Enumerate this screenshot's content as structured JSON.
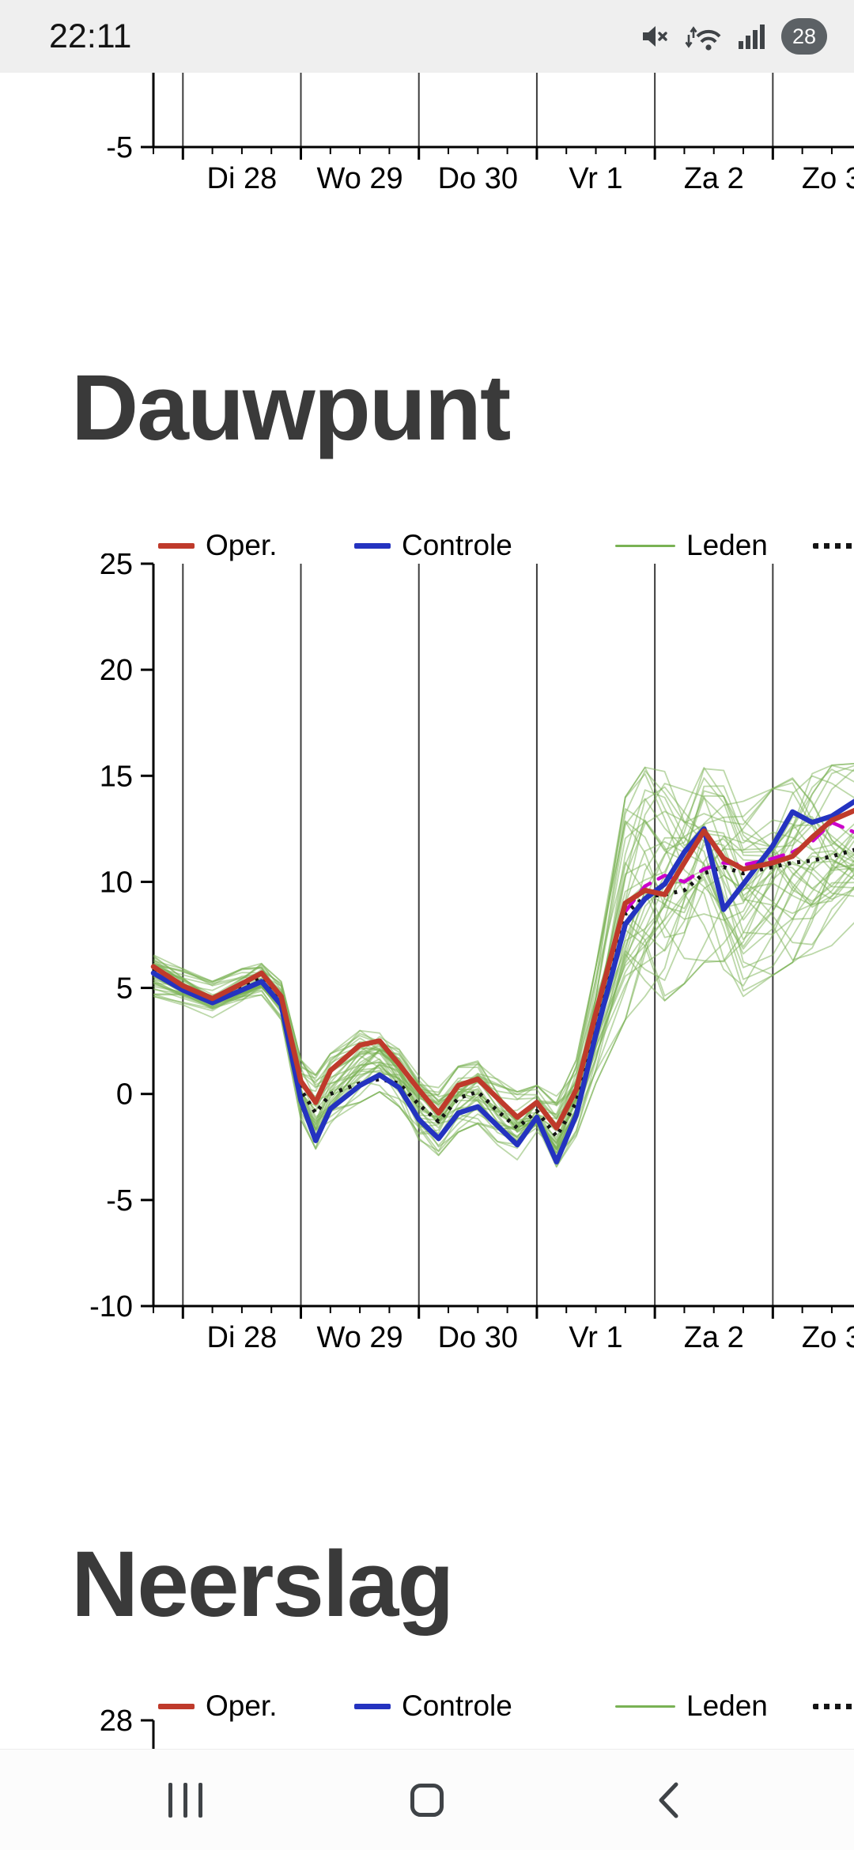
{
  "status_bar": {
    "time": "22:11",
    "battery_percent": "28",
    "icons": [
      {
        "name": "mute-icon"
      },
      {
        "name": "wifi-icon"
      },
      {
        "name": "signal-icon"
      },
      {
        "name": "battery-percent-badge"
      }
    ]
  },
  "nav_bar": {
    "buttons": [
      {
        "name": "recents-button",
        "icon": "recents-icon"
      },
      {
        "name": "home-button",
        "icon": "home-icon"
      },
      {
        "name": "back-button",
        "icon": "back-icon"
      }
    ]
  },
  "legend": {
    "items": [
      {
        "label": "Oper.",
        "color": "#bf3a2b",
        "swatch": "thick"
      },
      {
        "label": "Controle",
        "color": "#2433c0",
        "swatch": "thick"
      },
      {
        "label": "Leden",
        "color": "#79b254",
        "swatch": "thin"
      },
      {
        "label": "",
        "color": "#141414",
        "swatch": "dots"
      }
    ]
  },
  "chart_data": [
    {
      "type": "line",
      "partial": "bottom-axis-only",
      "y_tick_visible": -5,
      "grid_hours": [
        6,
        30,
        54,
        78,
        102,
        126,
        150
      ],
      "x_labels": [
        {
          "t": 18,
          "label": "Di 28"
        },
        {
          "t": 42,
          "label": "Wo 29"
        },
        {
          "t": 66,
          "label": "Do 30"
        },
        {
          "t": 90,
          "label": "Vr 1"
        },
        {
          "t": 114,
          "label": "Za 2"
        },
        {
          "t": 138,
          "label": "Zo 3"
        }
      ]
    },
    {
      "type": "line",
      "title": "Dauwpunt",
      "ylim": [
        -10,
        25
      ],
      "y_ticks": [
        25,
        20,
        15,
        10,
        5,
        0,
        -5,
        -10
      ],
      "grid_hours": [
        6,
        30,
        54,
        78,
        102,
        126,
        150
      ],
      "x_labels": [
        {
          "t": 18,
          "label": "Di 28"
        },
        {
          "t": 42,
          "label": "Wo 29"
        },
        {
          "t": 66,
          "label": "Do 30"
        },
        {
          "t": 90,
          "label": "Vr 1"
        },
        {
          "t": 114,
          "label": "Za 2"
        },
        {
          "t": 138,
          "label": "Zo 3"
        }
      ],
      "x": [
        0,
        6,
        12,
        18,
        22,
        26,
        30,
        33,
        36,
        42,
        46,
        50,
        54,
        58,
        62,
        66,
        70,
        74,
        78,
        82,
        86,
        90,
        96,
        100,
        104,
        108,
        112,
        116,
        120,
        126,
        130,
        134,
        138,
        144
      ],
      "series": [
        {
          "name": "",
          "style": "dashed",
          "color": "#cc00cc",
          "width": 4.5,
          "x": [
            96,
            100,
            104,
            108,
            112,
            116,
            120,
            126,
            130,
            134,
            138,
            144
          ],
          "values": [
            8.6,
            9.8,
            10.3,
            10.0,
            10.6,
            10.9,
            10.8,
            11.1,
            11.4,
            11.9,
            12.8,
            12.2
          ]
        },
        {
          "name": "",
          "style": "dotted",
          "color": "#141414",
          "width": 5,
          "values": [
            5.8,
            5.0,
            4.4,
            5.0,
            5.5,
            4.4,
            0.2,
            -0.9,
            0.0,
            0.5,
            0.7,
            0.5,
            -0.5,
            -1.3,
            -0.2,
            0.1,
            -0.8,
            -1.6,
            -0.8,
            -2.0,
            -0.4,
            3.2,
            8.5,
            9.3,
            9.4,
            9.6,
            10.4,
            10.7,
            10.4,
            10.7,
            10.9,
            11.0,
            11.2,
            11.6
          ]
        },
        {
          "name": "Controle",
          "style": "solid",
          "color": "#2433c0",
          "width": 6.5,
          "values": [
            5.7,
            4.9,
            4.3,
            4.9,
            5.3,
            4.2,
            -0.3,
            -2.2,
            -0.7,
            0.4,
            0.9,
            0.3,
            -1.2,
            -2.1,
            -0.9,
            -0.6,
            -1.5,
            -2.4,
            -1.1,
            -3.2,
            -1.0,
            2.8,
            8.0,
            9.2,
            9.9,
            11.4,
            12.5,
            8.7,
            9.9,
            11.7,
            13.3,
            12.8,
            13.1,
            14.0
          ]
        },
        {
          "name": "Oper.",
          "style": "solid",
          "color": "#bf3a2b",
          "width": 6.5,
          "values": [
            6.0,
            5.1,
            4.5,
            5.2,
            5.7,
            4.6,
            0.6,
            -0.4,
            1.1,
            2.3,
            2.5,
            1.4,
            0.2,
            -0.9,
            0.4,
            0.7,
            -0.2,
            -1.1,
            -0.4,
            -1.6,
            0.2,
            3.8,
            9.0,
            9.6,
            9.4,
            10.9,
            12.4,
            11.1,
            10.6,
            10.9,
            11.2,
            12.1,
            12.9,
            13.5
          ]
        }
      ],
      "ensemble": {
        "name": "Leden",
        "color": "#79b254",
        "count": 40,
        "opacity": 0.5,
        "min": [
          4.6,
          4.2,
          3.6,
          4.1,
          4.6,
          3.5,
          -1.2,
          -2.6,
          -1.4,
          -0.4,
          0.1,
          -0.6,
          -2.2,
          -2.9,
          -1.8,
          -1.4,
          -2.4,
          -3.1,
          -2.1,
          -3.7,
          -2.0,
          0.5,
          3.5,
          4.6,
          4.4,
          5.2,
          6.2,
          5.6,
          4.6,
          5.6,
          6.2,
          6.6,
          7.0,
          7.6
        ],
        "max": [
          6.6,
          5.9,
          5.3,
          5.9,
          6.2,
          5.3,
          1.6,
          0.9,
          1.9,
          3.1,
          3.1,
          2.3,
          0.9,
          0.3,
          1.3,
          1.6,
          0.7,
          0.1,
          0.4,
          -0.1,
          1.6,
          6.0,
          14.0,
          15.4,
          15.2,
          15.0,
          16.2,
          15.3,
          13.8,
          14.4,
          14.9,
          15.2,
          15.5,
          15.6
        ]
      }
    },
    {
      "type": "line",
      "title": "Neerslag",
      "partial": "top-axis-only",
      "y_tick_visible": 28
    }
  ]
}
